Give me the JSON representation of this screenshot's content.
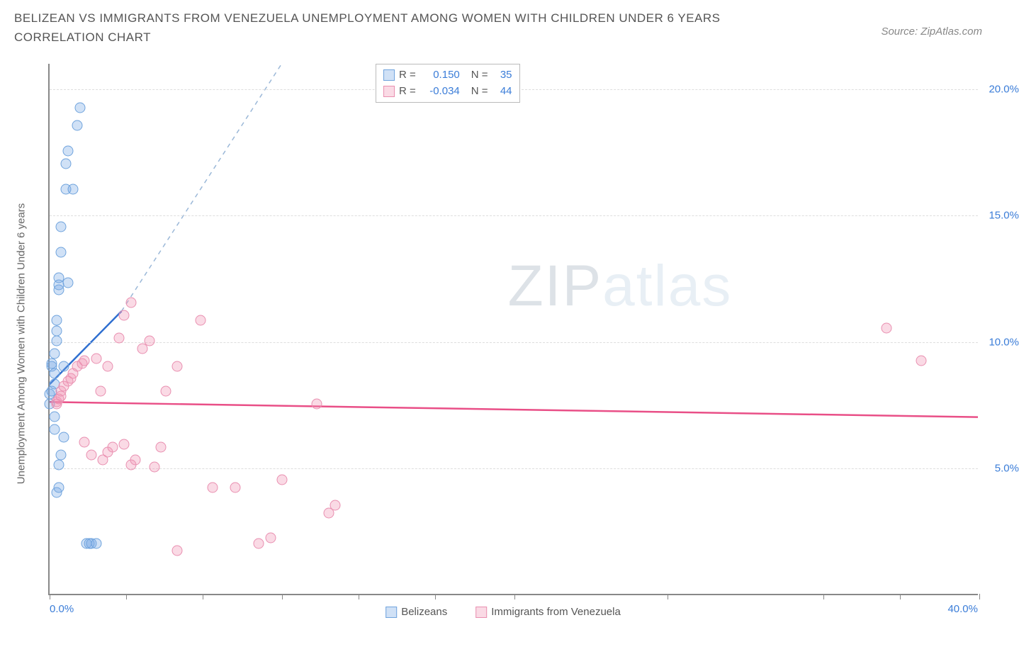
{
  "title": "BELIZEAN VS IMMIGRANTS FROM VENEZUELA UNEMPLOYMENT AMONG WOMEN WITH CHILDREN UNDER 6 YEARS CORRELATION CHART",
  "source": "Source: ZipAtlas.com",
  "watermark_a": "ZIP",
  "watermark_b": "atlas",
  "chart": {
    "type": "scatter",
    "y_axis": {
      "label": "Unemployment Among Women with Children Under 6 years",
      "label_color": "#666666",
      "min": 0.0,
      "max": 21.0,
      "gridlines": [
        5.0,
        10.0,
        15.0,
        20.0
      ],
      "tick_labels": [
        "5.0%",
        "10.0%",
        "15.0%",
        "20.0%"
      ],
      "tick_color": "#3b7dd8"
    },
    "x_axis": {
      "min": 0.0,
      "max": 40.0,
      "ticks": [
        0.0,
        3.3,
        6.6,
        10.0,
        13.3,
        16.6,
        20.0,
        26.6,
        33.3,
        36.6,
        40.0
      ],
      "min_label": "0.0%",
      "max_label": "40.0%",
      "label_color": "#3b7dd8"
    },
    "grid_color": "#dddddd",
    "axis_color": "#888888",
    "background_color": "#ffffff",
    "marker_radius": 7.5,
    "series": [
      {
        "name": "Belizeans",
        "label": "Belizeans",
        "fill": "rgba(120,170,230,0.35)",
        "stroke": "#6fa3dd",
        "trend_color": "#2f6fd0",
        "trend_dash_color": "#9bb8d8",
        "stats": {
          "R_label": "R =",
          "R": "0.150",
          "N_label": "N =",
          "N": "35"
        },
        "trend": {
          "x1": 0.0,
          "y1": 8.3,
          "x2": 3.1,
          "y2": 11.2,
          "dash_x2": 10.0,
          "dash_y2": 21.0
        },
        "points": [
          [
            0.0,
            7.5
          ],
          [
            0.0,
            7.9
          ],
          [
            0.1,
            9.0
          ],
          [
            0.1,
            9.1
          ],
          [
            0.1,
            8.0
          ],
          [
            0.2,
            8.3
          ],
          [
            0.2,
            8.7
          ],
          [
            0.2,
            9.5
          ],
          [
            0.3,
            10.0
          ],
          [
            0.3,
            10.4
          ],
          [
            0.3,
            10.8
          ],
          [
            0.4,
            12.0
          ],
          [
            0.4,
            12.2
          ],
          [
            0.4,
            12.5
          ],
          [
            0.5,
            13.5
          ],
          [
            0.5,
            14.5
          ],
          [
            0.7,
            16.0
          ],
          [
            0.7,
            17.0
          ],
          [
            0.8,
            17.5
          ],
          [
            1.2,
            18.5
          ],
          [
            1.3,
            19.2
          ],
          [
            0.3,
            4.0
          ],
          [
            0.4,
            4.2
          ],
          [
            0.4,
            5.1
          ],
          [
            0.5,
            5.5
          ],
          [
            0.6,
            6.2
          ],
          [
            0.2,
            7.0
          ],
          [
            0.6,
            9.0
          ],
          [
            0.8,
            12.3
          ],
          [
            1.0,
            16.0
          ],
          [
            1.6,
            2.0
          ],
          [
            1.7,
            2.0
          ],
          [
            1.8,
            2.0
          ],
          [
            2.0,
            2.0
          ],
          [
            0.2,
            6.5
          ]
        ]
      },
      {
        "name": "Immigrants from Venezuela",
        "label": "Immigrants from Venezuela",
        "fill": "rgba(240,150,180,0.35)",
        "stroke": "#e98fb0",
        "trend_color": "#e94f87",
        "stats": {
          "R_label": "R =",
          "R": "-0.034",
          "N_label": "N =",
          "N": "44"
        },
        "trend": {
          "x1": 0.0,
          "y1": 7.6,
          "x2": 40.0,
          "y2": 7.0
        },
        "points": [
          [
            0.3,
            7.5
          ],
          [
            0.3,
            7.6
          ],
          [
            0.4,
            7.7
          ],
          [
            0.5,
            7.8
          ],
          [
            0.5,
            8.0
          ],
          [
            0.6,
            8.2
          ],
          [
            0.8,
            8.4
          ],
          [
            0.9,
            8.5
          ],
          [
            1.0,
            8.7
          ],
          [
            1.2,
            9.0
          ],
          [
            1.4,
            9.1
          ],
          [
            1.5,
            9.2
          ],
          [
            2.0,
            9.3
          ],
          [
            2.2,
            8.0
          ],
          [
            2.5,
            9.0
          ],
          [
            3.0,
            10.1
          ],
          [
            3.2,
            11.0
          ],
          [
            3.5,
            11.5
          ],
          [
            4.0,
            9.7
          ],
          [
            4.3,
            10.0
          ],
          [
            5.0,
            8.0
          ],
          [
            5.5,
            9.0
          ],
          [
            6.5,
            10.8
          ],
          [
            1.5,
            6.0
          ],
          [
            1.8,
            5.5
          ],
          [
            2.3,
            5.3
          ],
          [
            2.5,
            5.6
          ],
          [
            2.7,
            5.8
          ],
          [
            3.2,
            5.9
          ],
          [
            3.5,
            5.1
          ],
          [
            3.7,
            5.3
          ],
          [
            4.5,
            5.0
          ],
          [
            4.8,
            5.8
          ],
          [
            7.0,
            4.2
          ],
          [
            8.0,
            4.2
          ],
          [
            9.0,
            2.0
          ],
          [
            9.5,
            2.2
          ],
          [
            10.0,
            4.5
          ],
          [
            11.5,
            7.5
          ],
          [
            12.0,
            3.2
          ],
          [
            12.3,
            3.5
          ],
          [
            5.5,
            1.7
          ],
          [
            36.0,
            10.5
          ],
          [
            37.5,
            9.2
          ]
        ]
      }
    ]
  },
  "stats_value_color": "#3b7dd8",
  "stats_label_color": "#555555"
}
